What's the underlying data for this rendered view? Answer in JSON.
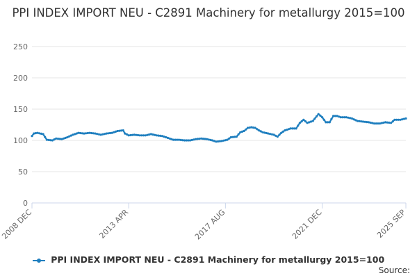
{
  "chart_data": {
    "type": "line",
    "title": "PPI INDEX IMPORT NEU - C2891 Machinery for metallurgy 2015=100",
    "xlabel": "",
    "ylabel": "",
    "x_ticks": [
      "2008 DEC",
      "2013 APR",
      "2017 AUG",
      "2021 DEC",
      "2025 SEP"
    ],
    "ylim": [
      0,
      250
    ],
    "y_ticks": [
      "0",
      "50",
      "100",
      "150",
      "200",
      "250"
    ],
    "grid": true,
    "legend_position": "bottom-center",
    "color": "#1f7fbf",
    "series": [
      {
        "name": "PPI INDEX IMPORT NEU - C2891 Machinery for metallurgy 2015=100",
        "points": [
          [
            "2008-12",
            107
          ],
          [
            "2009-01",
            111
          ],
          [
            "2009-03",
            112
          ],
          [
            "2009-06",
            110
          ],
          [
            "2009-08",
            101
          ],
          [
            "2009-11",
            100
          ],
          [
            "2010-01",
            103
          ],
          [
            "2010-04",
            102
          ],
          [
            "2010-07",
            105
          ],
          [
            "2010-10",
            109
          ],
          [
            "2011-01",
            112
          ],
          [
            "2011-04",
            111
          ],
          [
            "2011-07",
            112
          ],
          [
            "2011-10",
            111
          ],
          [
            "2012-01",
            109
          ],
          [
            "2012-04",
            111
          ],
          [
            "2012-07",
            112
          ],
          [
            "2012-10",
            115
          ],
          [
            "2013-01",
            116
          ],
          [
            "2013-02",
            111
          ],
          [
            "2013-04",
            108
          ],
          [
            "2013-07",
            109
          ],
          [
            "2013-10",
            108
          ],
          [
            "2014-01",
            108
          ],
          [
            "2014-04",
            110
          ],
          [
            "2014-07",
            108
          ],
          [
            "2014-10",
            107
          ],
          [
            "2015-01",
            104
          ],
          [
            "2015-04",
            101
          ],
          [
            "2015-07",
            101
          ],
          [
            "2015-10",
            100
          ],
          [
            "2016-01",
            100
          ],
          [
            "2016-04",
            102
          ],
          [
            "2016-07",
            103
          ],
          [
            "2016-10",
            102
          ],
          [
            "2017-01",
            100
          ],
          [
            "2017-03",
            98
          ],
          [
            "2017-06",
            99
          ],
          [
            "2017-09",
            101
          ],
          [
            "2017-11",
            105
          ],
          [
            "2018-02",
            106
          ],
          [
            "2018-04",
            113
          ],
          [
            "2018-06",
            115
          ],
          [
            "2018-08",
            120
          ],
          [
            "2018-10",
            121
          ],
          [
            "2018-12",
            120
          ],
          [
            "2019-02",
            116
          ],
          [
            "2019-04",
            113
          ],
          [
            "2019-07",
            111
          ],
          [
            "2019-10",
            109
          ],
          [
            "2019-12",
            106
          ],
          [
            "2020-02",
            112
          ],
          [
            "2020-04",
            116
          ],
          [
            "2020-07",
            119
          ],
          [
            "2020-10",
            119
          ],
          [
            "2020-12",
            128
          ],
          [
            "2021-02",
            133
          ],
          [
            "2021-04",
            128
          ],
          [
            "2021-07",
            131
          ],
          [
            "2021-10",
            142
          ],
          [
            "2021-12",
            137
          ],
          [
            "2022-02",
            129
          ],
          [
            "2022-04",
            129
          ],
          [
            "2022-06",
            139
          ],
          [
            "2022-08",
            139
          ],
          [
            "2022-10",
            137
          ],
          [
            "2023-01",
            137
          ],
          [
            "2023-04",
            135
          ],
          [
            "2023-07",
            131
          ],
          [
            "2023-10",
            130
          ],
          [
            "2024-01",
            129
          ],
          [
            "2024-04",
            127
          ],
          [
            "2024-07",
            127
          ],
          [
            "2024-10",
            129
          ],
          [
            "2025-01",
            128
          ],
          [
            "2025-03",
            133
          ],
          [
            "2025-06",
            133
          ],
          [
            "2025-09",
            135
          ]
        ]
      }
    ]
  },
  "source_label": "Source:"
}
